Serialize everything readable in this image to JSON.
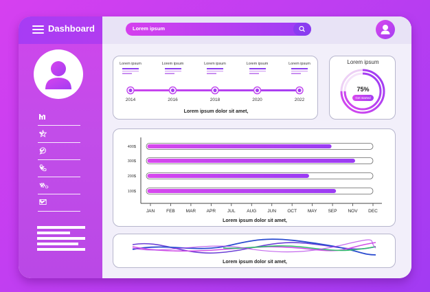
{
  "header": {
    "title": "Dashboard"
  },
  "search": {
    "placeholder": "Lorem ipsum"
  },
  "sidebar": {
    "menu": [
      {
        "icon": "bar-chart-icon"
      },
      {
        "icon": "star-icon"
      },
      {
        "icon": "chat-icon"
      },
      {
        "icon": "phone-icon"
      },
      {
        "icon": "gear-icon"
      },
      {
        "icon": "mail-icon"
      }
    ]
  },
  "timeline": {
    "items": [
      {
        "title": "Lorem ipsum",
        "year": "2014"
      },
      {
        "title": "Lorem ipsum",
        "year": "2016"
      },
      {
        "title": "Lorem ipsum",
        "year": "2018"
      },
      {
        "title": "Lorem ipsum",
        "year": "2020"
      },
      {
        "title": "Lorem ipsum",
        "year": "2022"
      }
    ],
    "caption": "Lorem ipsum dolor sit amet,"
  },
  "progress_card": {
    "title": "Lorem ipsum",
    "value_text": "75%",
    "value": 0.75,
    "button_label": "Get started"
  },
  "colors": {
    "accent": "#a23bf2",
    "pink": "#d640f0"
  },
  "chart_data": {
    "type": "bar",
    "orientation": "horizontal",
    "y_ticks": [
      "400$",
      "300$",
      "200$",
      "100$"
    ],
    "x_labels": [
      "JAN",
      "FEB",
      "MAR",
      "APR",
      "JUL",
      "AUG",
      "JUN",
      "OCT",
      "MAY",
      "SEP",
      "NOV",
      "DEC"
    ],
    "bars": [
      {
        "tick": "400$",
        "fill": 0.82
      },
      {
        "tick": "300$",
        "fill": 0.925
      },
      {
        "tick": "200$",
        "fill": 0.72
      },
      {
        "tick": "100$",
        "fill": 0.84
      }
    ],
    "caption": "Lorem ipsum dolor sit amet,"
  },
  "wave": {
    "caption": "Lorem ipsum dolor sit amet,"
  }
}
